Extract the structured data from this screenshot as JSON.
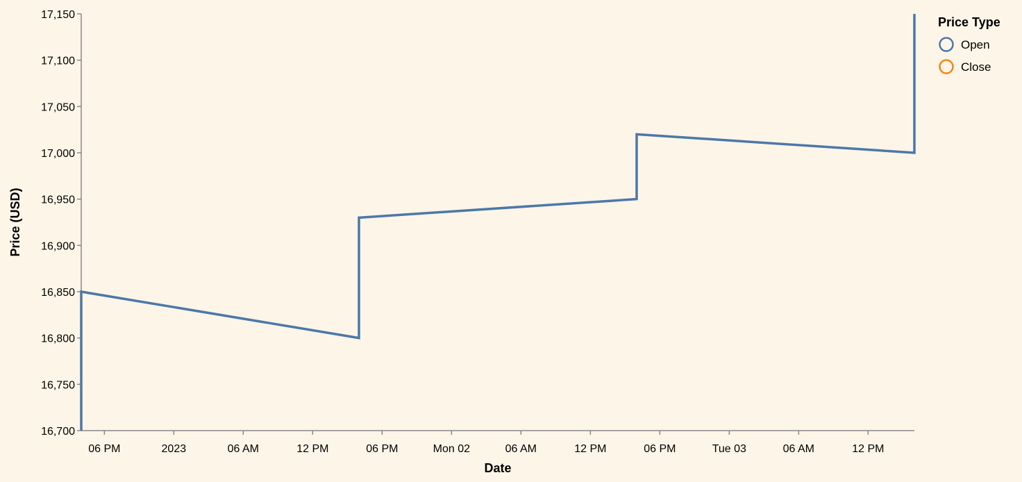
{
  "chart_data": {
    "type": "line",
    "xlabel": "Date",
    "ylabel": "Price (USD)",
    "x_domain": [
      "2022-12-31T16:00:00",
      "2023-01-03T16:00:00"
    ],
    "ylim": [
      16700,
      17150
    ],
    "y_ticks": [
      16700,
      16750,
      16800,
      16850,
      16900,
      16950,
      17000,
      17050,
      17100,
      17150
    ],
    "x_ticks": [
      {
        "t": "2022-12-31T18:00:00",
        "label": "06 PM"
      },
      {
        "t": "2023-01-01T00:00:00",
        "label": "2023"
      },
      {
        "t": "2023-01-01T06:00:00",
        "label": "06 AM"
      },
      {
        "t": "2023-01-01T12:00:00",
        "label": "12 PM"
      },
      {
        "t": "2023-01-01T18:00:00",
        "label": "06 PM"
      },
      {
        "t": "2023-01-02T00:00:00",
        "label": "Mon 02"
      },
      {
        "t": "2023-01-02T06:00:00",
        "label": "06 AM"
      },
      {
        "t": "2023-01-02T12:00:00",
        "label": "12 PM"
      },
      {
        "t": "2023-01-02T18:00:00",
        "label": "06 PM"
      },
      {
        "t": "2023-01-03T00:00:00",
        "label": "Tue 03"
      },
      {
        "t": "2023-01-03T06:00:00",
        "label": "06 AM"
      },
      {
        "t": "2023-01-03T12:00:00",
        "label": "12 PM"
      }
    ],
    "grid": false,
    "legend": {
      "title": "Price Type",
      "placement": "top-right",
      "entries": [
        {
          "name": "Open",
          "color": "#4c78a8"
        },
        {
          "name": "Close",
          "color": "#f58518"
        }
      ]
    },
    "series": [
      {
        "name": "Open",
        "color": "#4c78a8",
        "points": [
          {
            "x": "2022-12-31T16:00:00",
            "y": 16700
          },
          {
            "x": "2022-12-31T16:00:00",
            "y": 16850
          },
          {
            "x": "2023-01-01T16:00:00",
            "y": 16800
          },
          {
            "x": "2023-01-01T16:00:00",
            "y": 16930
          },
          {
            "x": "2023-01-02T16:00:00",
            "y": 16950
          },
          {
            "x": "2023-01-02T16:00:00",
            "y": 17020
          },
          {
            "x": "2023-01-03T16:00:00",
            "y": 17000
          },
          {
            "x": "2023-01-03T16:00:00",
            "y": 17150
          }
        ]
      }
    ]
  }
}
